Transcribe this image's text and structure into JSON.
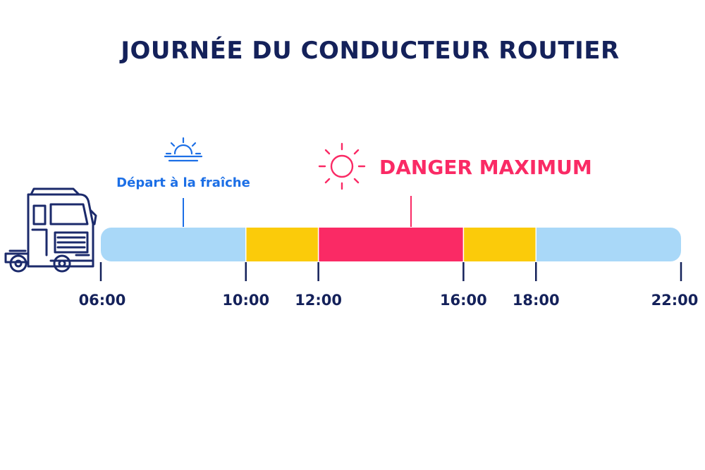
{
  "title": "JOURNÉE DU CONDUCTEUR ROUTIER",
  "colors": {
    "title": "#14215a",
    "cool": "#a9d8f8",
    "warm": "#fbcb0a",
    "danger": "#fa2a65",
    "departure_text": "#1c6fe6",
    "danger_text": "#fa2a65",
    "ticks": "#14215a",
    "truck": "#1b2a6b"
  },
  "annotations": {
    "departure": {
      "label": "Départ à la fraîche",
      "icon": "sunrise-icon",
      "time": 8.5
    },
    "danger": {
      "label": "DANGER MAXIMUM",
      "icon": "sun-icon",
      "time": 14.5
    }
  },
  "truck_icon": "truck-icon",
  "chart_data": {
    "type": "timeline",
    "axis_start": 6,
    "axis_end": 22,
    "ticks": [
      "06:00",
      "10:00",
      "12:00",
      "16:00",
      "18:00",
      "22:00"
    ],
    "tick_values": [
      6,
      10,
      12,
      16,
      18,
      22
    ],
    "segments": [
      {
        "from": 6,
        "to": 10,
        "level": "cool"
      },
      {
        "from": 10,
        "to": 12,
        "level": "warm"
      },
      {
        "from": 12,
        "to": 16,
        "level": "danger"
      },
      {
        "from": 16,
        "to": 18,
        "level": "warm"
      },
      {
        "from": 18,
        "to": 22,
        "level": "cool"
      }
    ]
  }
}
